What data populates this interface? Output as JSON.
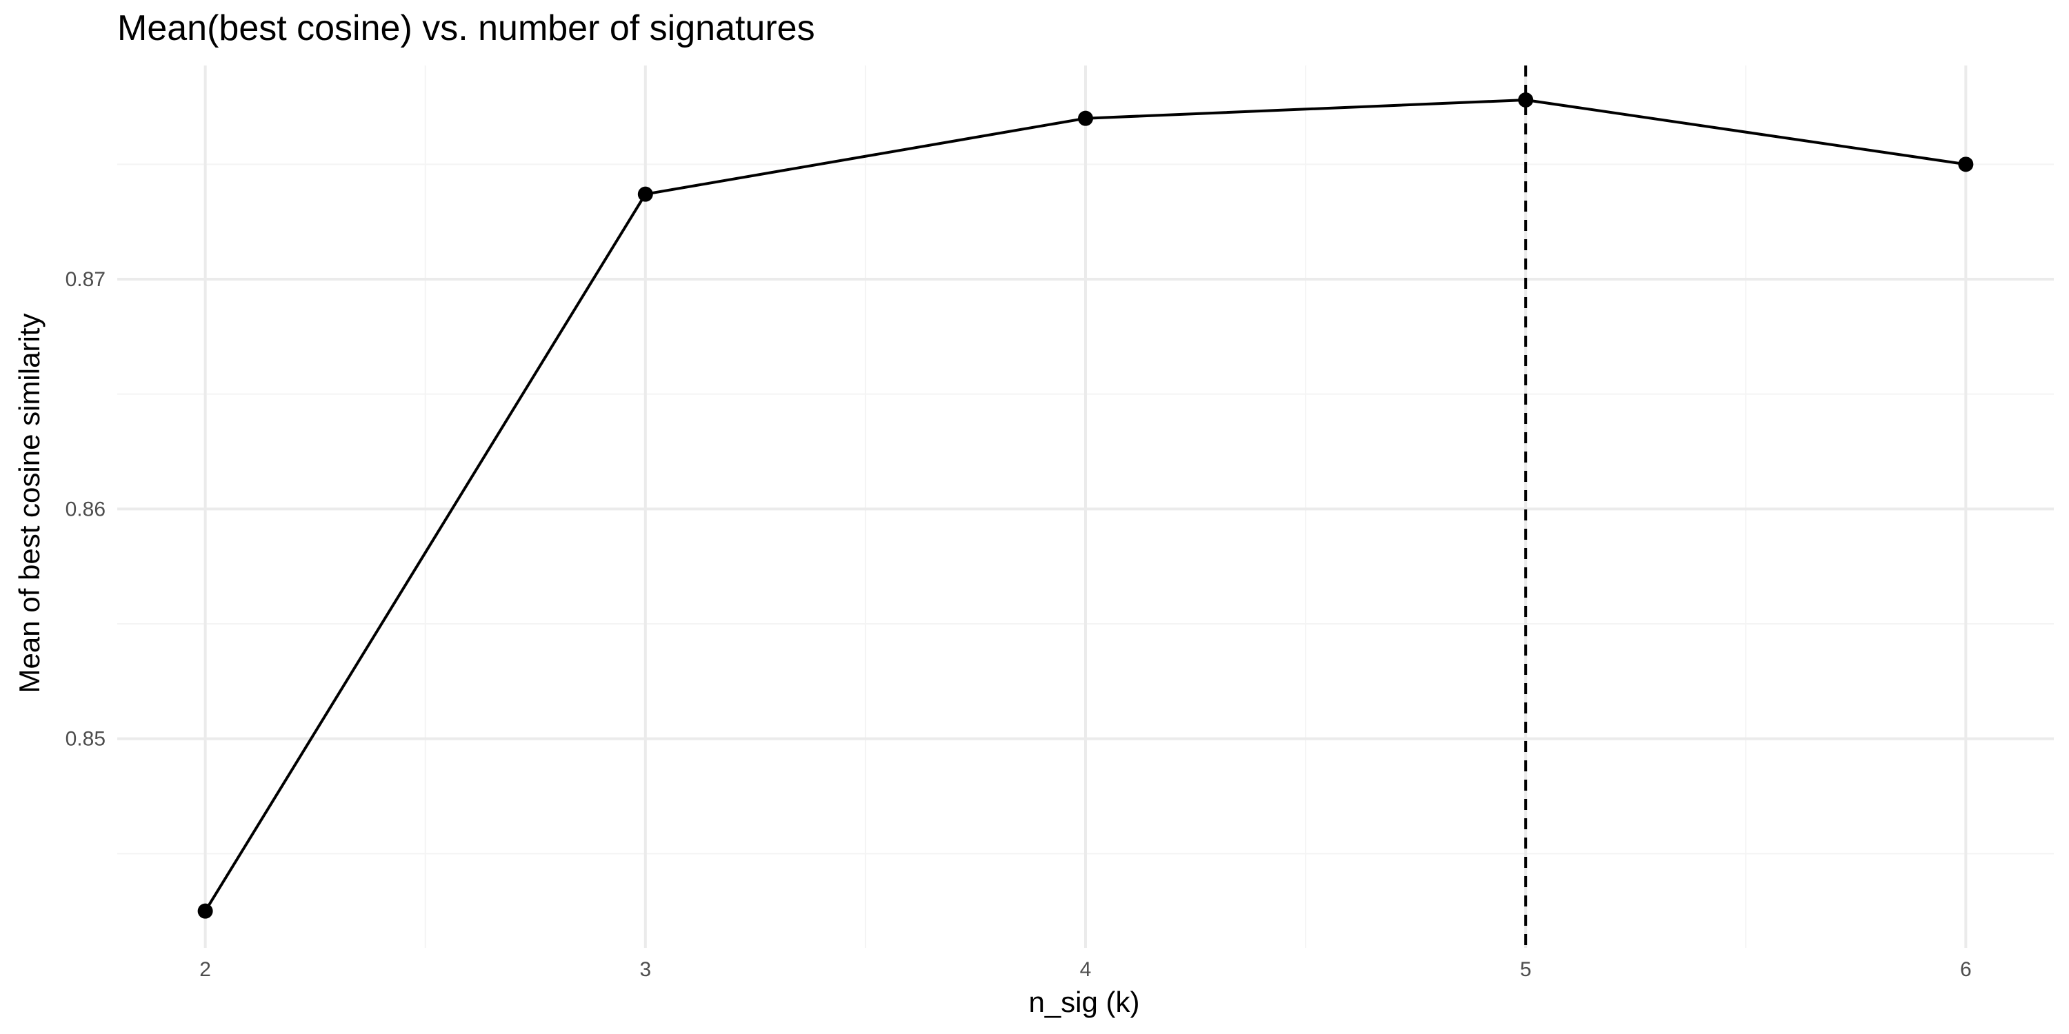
{
  "chart_data": {
    "type": "line",
    "title": "Mean(best cosine) vs. number of signatures",
    "xlabel": "n_sig (k)",
    "ylabel": "Mean of best cosine similarity",
    "x": [
      2,
      3,
      4,
      5,
      6
    ],
    "series": [
      {
        "values": [
          0.8425,
          0.8737,
          0.877,
          0.8778,
          0.875
        ]
      }
    ],
    "x_ticks": [
      2,
      3,
      4,
      5,
      6
    ],
    "y_ticks": [
      0.85,
      0.86,
      0.87
    ],
    "y_tick_labels": [
      "0.85",
      "0.86",
      "0.87"
    ],
    "x_tick_labels": [
      "2",
      "3",
      "4",
      "5",
      "6"
    ],
    "xlim": [
      1.8,
      6.2
    ],
    "ylim": [
      0.8409,
      0.8793
    ],
    "reference_line": {
      "orientation": "vertical",
      "x": 5,
      "style": "dashed"
    },
    "grid": true,
    "legend": "none",
    "colors": {
      "line": "#000000",
      "point": "#000000",
      "grid_major": "#ebebeb",
      "grid_minor": "#f4f4f4",
      "background": "#ffffff"
    }
  }
}
